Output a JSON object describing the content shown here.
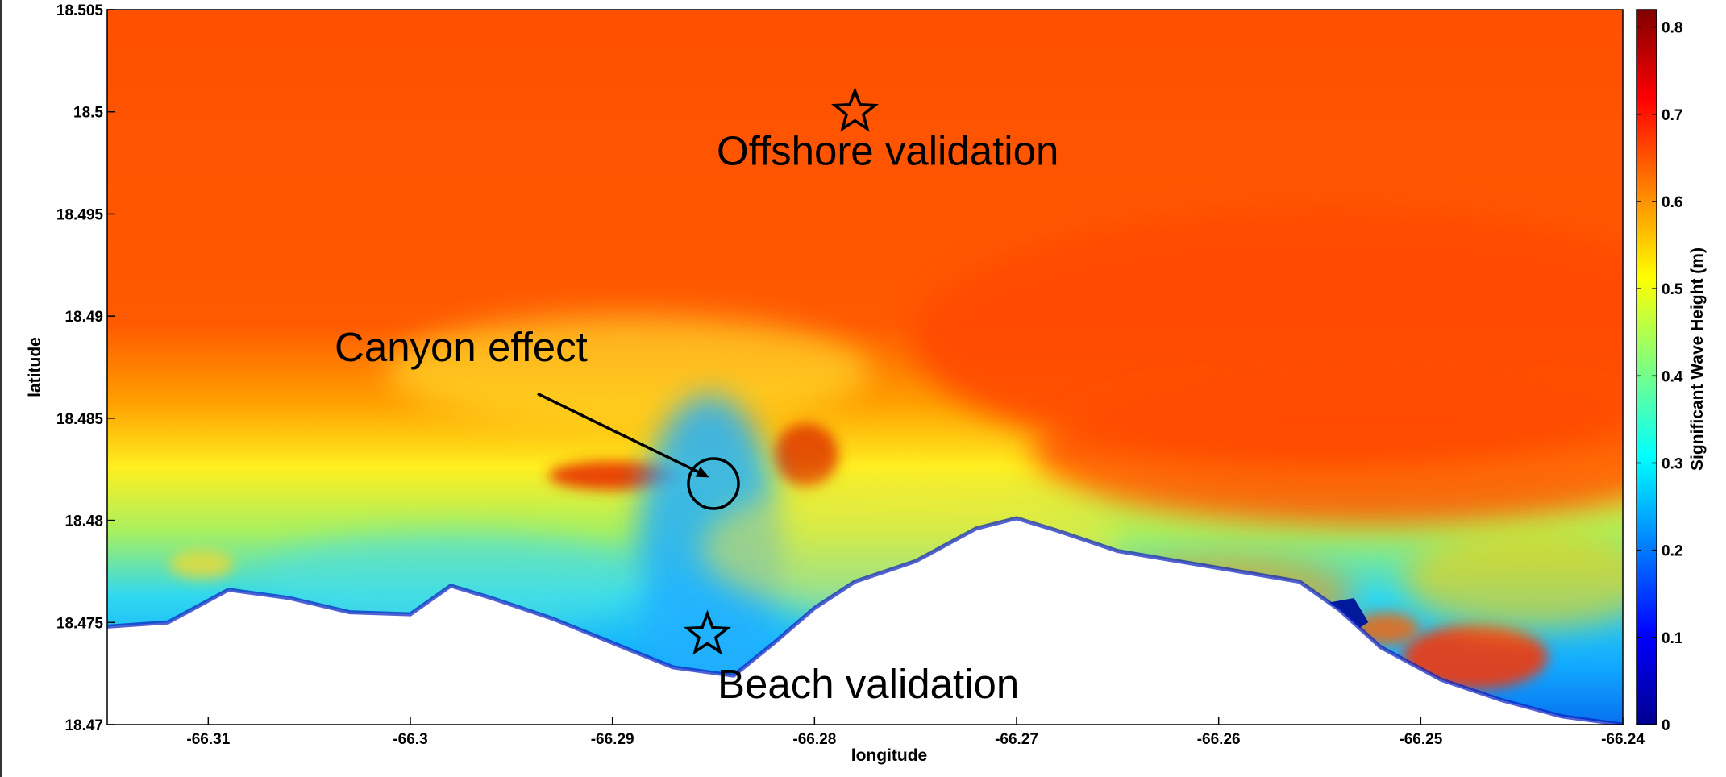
{
  "chart_data": {
    "type": "heatmap",
    "title": "",
    "xlabel": "longitude",
    "ylabel": "latitude",
    "xlim": [
      -66.315,
      -66.24
    ],
    "ylim": [
      18.47,
      18.505
    ],
    "xticks": [
      -66.31,
      -66.3,
      -66.29,
      -66.28,
      -66.27,
      -66.26,
      -66.25,
      -66.24
    ],
    "yticks": [
      18.47,
      18.475,
      18.48,
      18.485,
      18.49,
      18.495,
      18.5,
      18.505
    ],
    "colorbar": {
      "label": "Significant Wave Height (m)",
      "range": [
        0,
        0.82
      ],
      "ticks": [
        0,
        0.1,
        0.2,
        0.3,
        0.4,
        0.5,
        0.6,
        0.7,
        0.8
      ],
      "colormap": "jet"
    },
    "field_summary": {
      "offshore_height_m": 0.65,
      "nearshore_min_height_m": 0.1,
      "land_color": "#ffffff"
    },
    "coastline": [
      [
        -66.315,
        18.4748
      ],
      [
        -66.312,
        18.475
      ],
      [
        -66.309,
        18.4766
      ],
      [
        -66.306,
        18.4762
      ],
      [
        -66.303,
        18.4755
      ],
      [
        -66.3,
        18.4754
      ],
      [
        -66.298,
        18.4768
      ],
      [
        -66.296,
        18.4762
      ],
      [
        -66.293,
        18.4752
      ],
      [
        -66.29,
        18.474
      ],
      [
        -66.287,
        18.4728
      ],
      [
        -66.284,
        18.4724
      ],
      [
        -66.282,
        18.474
      ],
      [
        -66.28,
        18.4757
      ],
      [
        -66.278,
        18.477
      ],
      [
        -66.275,
        18.478
      ],
      [
        -66.272,
        18.4796
      ],
      [
        -66.27,
        18.4801
      ],
      [
        -66.268,
        18.4795
      ],
      [
        -66.265,
        18.4785
      ],
      [
        -66.262,
        18.478
      ],
      [
        -66.259,
        18.4775
      ],
      [
        -66.256,
        18.477
      ],
      [
        -66.254,
        18.4756
      ],
      [
        -66.252,
        18.4738
      ],
      [
        -66.249,
        18.4722
      ],
      [
        -66.246,
        18.4712
      ],
      [
        -66.243,
        18.4704
      ],
      [
        -66.24,
        18.47
      ]
    ],
    "markers": [
      {
        "shape": "star",
        "lon": -66.278,
        "lat": 18.5
      },
      {
        "shape": "star",
        "lon": -66.2853,
        "lat": 18.4744
      },
      {
        "shape": "circle",
        "lon": -66.285,
        "lat": 18.4818
      }
    ],
    "annotations": [
      {
        "text": "Offshore validation",
        "lon": -66.2795,
        "lat": 18.4974
      },
      {
        "text": "Canyon effect",
        "lon": -66.3025,
        "lat": 18.4878
      },
      {
        "text": "Beach validation",
        "lon": -66.2785,
        "lat": 18.4713
      }
    ],
    "arrow": {
      "from": [
        -66.2937,
        18.4862
      ],
      "to": [
        -66.2852,
        18.4821
      ]
    }
  }
}
